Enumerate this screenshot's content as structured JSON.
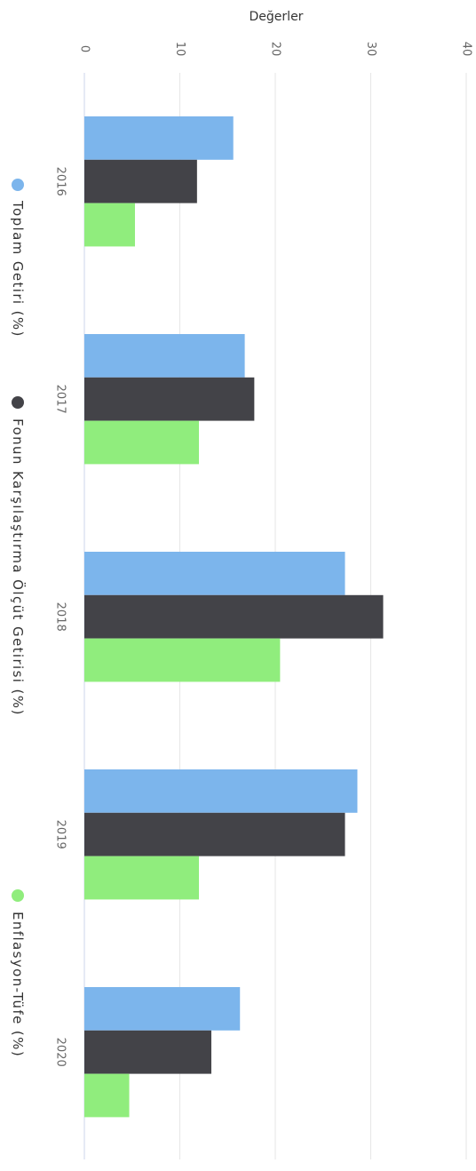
{
  "chart_data": {
    "type": "bar",
    "orientation": "horizontal",
    "title": "",
    "xlabel": "",
    "ylabel": "Değerler",
    "ylim": [
      0,
      40
    ],
    "ticks": [
      0,
      10,
      20,
      30,
      40
    ],
    "grid": true,
    "legend_position": "left",
    "categories": [
      "2016",
      "2017",
      "2018",
      "2019",
      "2020"
    ],
    "series": [
      {
        "name": "Toplam Getiri (%)",
        "color": "#7cb5ec",
        "values": [
          15.6,
          16.8,
          27.3,
          28.6,
          16.3
        ]
      },
      {
        "name": "Fonun Karşılaştırma Ölçüt Getirisi (%)",
        "color": "#434348",
        "values": [
          11.8,
          17.8,
          31.3,
          27.3,
          13.3
        ]
      },
      {
        "name": "Enflasyon-Tüfe (%)",
        "color": "#90ed7d",
        "values": [
          5.3,
          12.0,
          20.5,
          12.0,
          4.7
        ]
      }
    ]
  }
}
